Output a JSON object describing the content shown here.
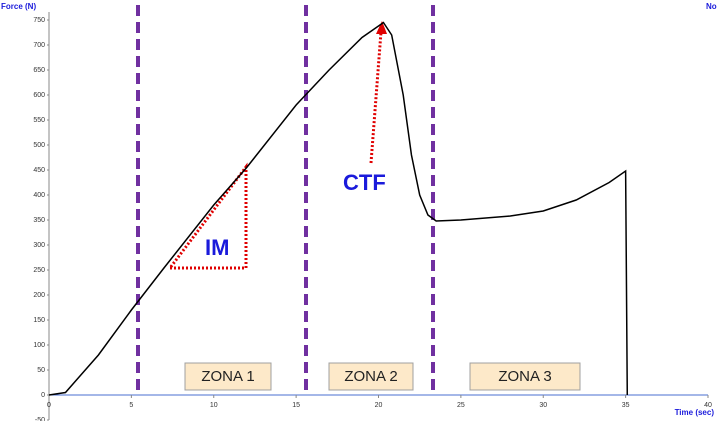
{
  "chart_data": {
    "type": "line",
    "y_label": "Force (N)",
    "x_label": "Time (sec)",
    "corner_text": "No",
    "annotations": [
      "IM",
      "CTF"
    ],
    "zones": [
      "ZONA 1",
      "ZONA 2",
      "ZONA 3"
    ],
    "color": "#000000",
    "x": [
      0,
      1,
      3,
      5,
      7,
      10,
      12,
      15,
      17,
      19,
      20,
      20.3,
      20.8,
      21.5,
      22,
      22.5,
      23,
      23.5,
      25,
      28,
      30,
      32,
      34,
      35,
      35.1
    ],
    "values": [
      0,
      5,
      80,
      170,
      255,
      380,
      455,
      580,
      650,
      715,
      738,
      745,
      720,
      600,
      480,
      400,
      360,
      348,
      350,
      358,
      368,
      390,
      425,
      448,
      0
    ],
    "xlim": [
      0,
      40
    ],
    "xticks": [
      0,
      5,
      10,
      15,
      20,
      25,
      30,
      35,
      40
    ],
    "ylim": [
      -50,
      750
    ],
    "yticks": [
      -50,
      0,
      50,
      100,
      150,
      200,
      250,
      300,
      350,
      400,
      450,
      500,
      550,
      600,
      650,
      700,
      750
    ],
    "grid": false
  }
}
